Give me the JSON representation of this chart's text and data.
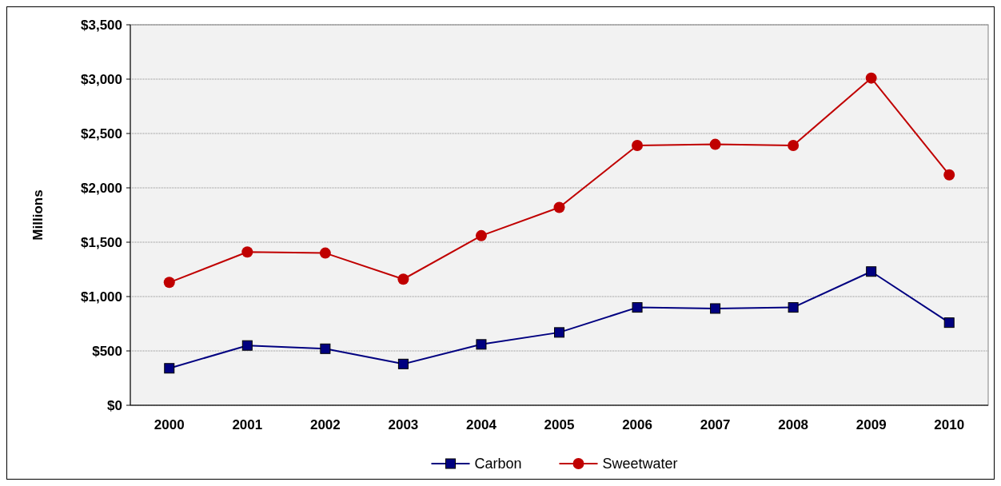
{
  "chart_data": {
    "type": "line",
    "ylabel": "Millions",
    "categories": [
      "2000",
      "2001",
      "2002",
      "2003",
      "2004",
      "2005",
      "2006",
      "2007",
      "2008",
      "2009",
      "2010"
    ],
    "series": [
      {
        "name": "Carbon",
        "color": "#000080",
        "marker": "square",
        "values": [
          340,
          550,
          520,
          380,
          560,
          670,
          900,
          890,
          900,
          1230,
          760
        ]
      },
      {
        "name": "Sweetwater",
        "color": "#c00000",
        "marker": "circle",
        "values": [
          1130,
          1410,
          1400,
          1160,
          1560,
          1820,
          2390,
          2400,
          2390,
          3010,
          2120
        ]
      }
    ],
    "ylim": [
      0,
      3500
    ],
    "yticks": [
      {
        "value": 0,
        "label": "$0"
      },
      {
        "value": 500,
        "label": "$500"
      },
      {
        "value": 1000,
        "label": "$1,000"
      },
      {
        "value": 1500,
        "label": "$1,500"
      },
      {
        "value": 2000,
        "label": "$2,000"
      },
      {
        "value": 2500,
        "label": "$2,500"
      },
      {
        "value": 3000,
        "label": "$3,000"
      },
      {
        "value": 3500,
        "label": "$3,500"
      }
    ],
    "grid": "y",
    "legend": "bottom",
    "line_style": "solid"
  }
}
